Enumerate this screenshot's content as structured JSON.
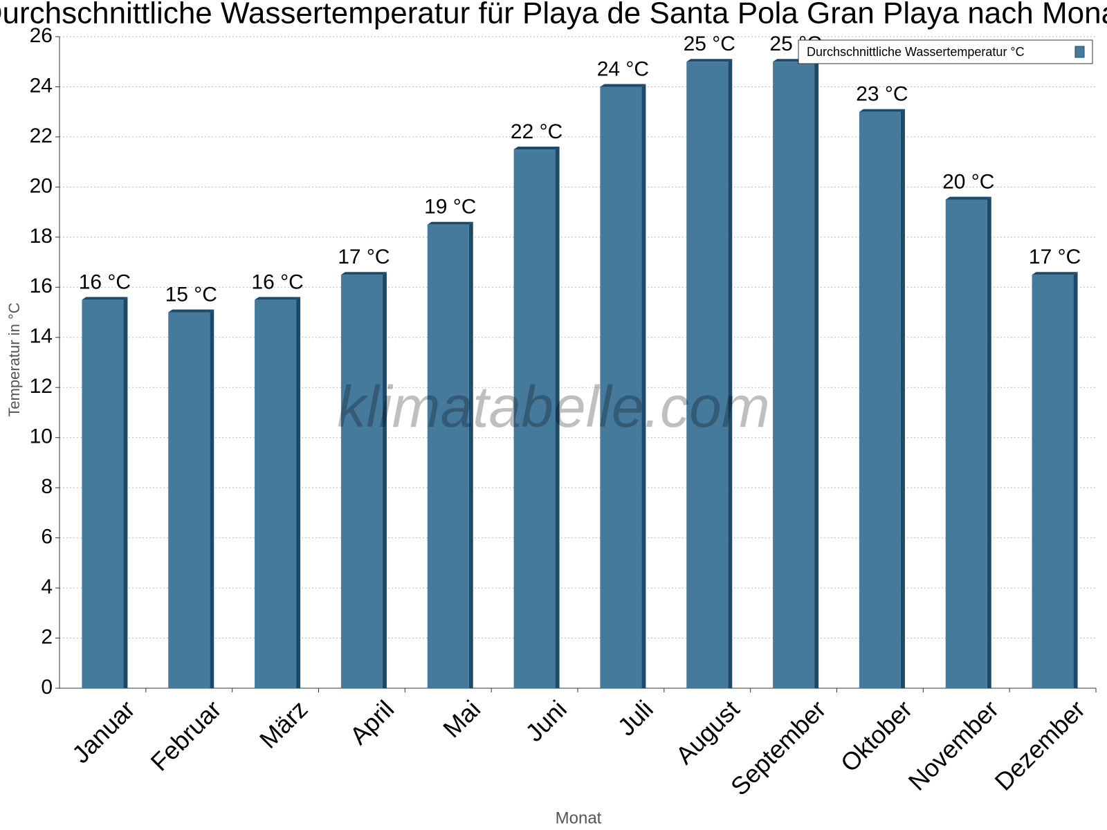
{
  "chart_data": {
    "type": "bar",
    "title": "Durchschnittliche Wassertemperatur für Playa de Santa Pola Gran Playa nach Monat",
    "watermark": "klimatabelle.com",
    "x_label": "Monat",
    "y_label": "Temperatur in °C",
    "categories": [
      "Januar",
      "Februar",
      "März",
      "April",
      "Mai",
      "Juni",
      "Juli",
      "August",
      "September",
      "Oktober",
      "November",
      "Dezember"
    ],
    "series": [
      {
        "name": "Durchschnittliche Wassertemperatur °C",
        "color": "#467a9c",
        "values": [
          15.5,
          15,
          15.5,
          16.5,
          18.5,
          21.5,
          24,
          25,
          25,
          23,
          19.5,
          16.5
        ],
        "value_labels": [
          "16 °C",
          "15 °C",
          "16 °C",
          "17 °C",
          "19 °C",
          "22 °C",
          "24 °C",
          "25 °C",
          "25 °C",
          "23 °C",
          "20 °C",
          "17 °C"
        ]
      }
    ],
    "ylim": [
      0,
      26
    ],
    "yticks": [
      0,
      2,
      4,
      6,
      8,
      10,
      12,
      14,
      16,
      18,
      20,
      22,
      24,
      26
    ],
    "grid": true,
    "legend": "top-right"
  }
}
